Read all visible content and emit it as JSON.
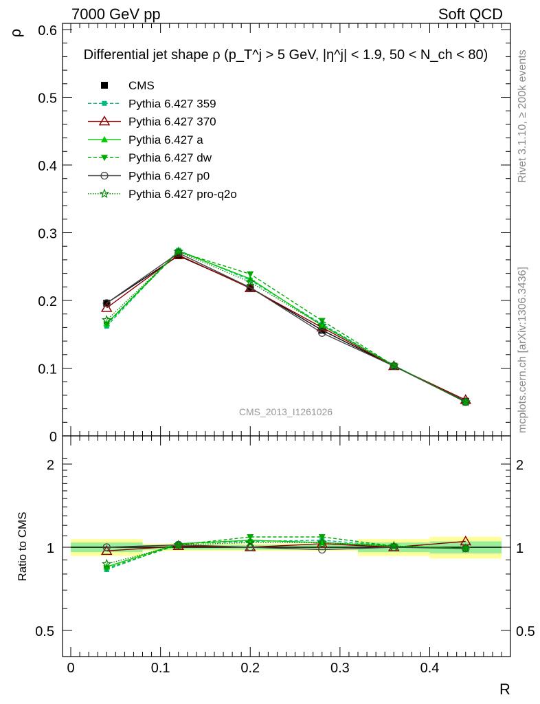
{
  "header": {
    "left": "7000 GeV pp",
    "right": "Soft QCD"
  },
  "side_labels": {
    "top": "Rivet 3.1.10, ≥ 200k events",
    "bottom": "mcplots.cern.ch [arXiv:1306.3436]"
  },
  "colors": {
    "cms": "#000000",
    "p359": "#00b980",
    "p370": "#8b0000",
    "pa": "#00cc00",
    "pdw": "#00aa00",
    "pp0": "#444444",
    "pq2o": "#008800",
    "band_outer": "#ffff99",
    "band_inner": "#99ee99"
  },
  "chart_data": [
    {
      "type": "line",
      "title": "Differential jet shape ρ (p_T^j > 5 GeV, |η^j| < 1.9, 50 < N_ch < 80)",
      "ylabel": "ρ",
      "xlim": [
        0,
        0.48
      ],
      "ylim": [
        0,
        0.6
      ],
      "watermark": "CMS_2013_I1261026",
      "x": [
        0.04,
        0.12,
        0.2,
        0.28,
        0.36,
        0.44
      ],
      "yticks": [
        "0",
        "0.1",
        "0.2",
        "0.3",
        "0.4",
        "0.5",
        "0.6"
      ],
      "legend_position": "top-left",
      "series": [
        {
          "name": "CMS",
          "marker": "square",
          "values": [
            0.196,
            0.266,
            0.219,
            0.156,
            0.103,
            0.051
          ]
        },
        {
          "name": "Pythia 6.427 359",
          "marker": "small-square",
          "dash": "dashed",
          "values": [
            0.162,
            0.274,
            0.23,
            0.165,
            0.104,
            0.05
          ]
        },
        {
          "name": "Pythia 6.427 370",
          "marker": "open-triangle",
          "dash": "solid",
          "values": [
            0.189,
            0.267,
            0.218,
            0.16,
            0.103,
            0.053
          ]
        },
        {
          "name": "Pythia 6.427 a",
          "marker": "triangle",
          "dash": "solid",
          "values": [
            0.166,
            0.273,
            0.232,
            0.163,
            0.104,
            0.05
          ]
        },
        {
          "name": "Pythia 6.427 dw",
          "marker": "triangle-down",
          "dash": "dashed",
          "values": [
            0.165,
            0.272,
            0.239,
            0.17,
            0.104,
            0.05
          ]
        },
        {
          "name": "Pythia 6.427 p0",
          "marker": "open-circle",
          "dash": "solid",
          "values": [
            0.196,
            0.27,
            0.219,
            0.152,
            0.103,
            0.05
          ]
        },
        {
          "name": "Pythia 6.427 pro-q2o",
          "marker": "star",
          "dash": "dotted",
          "values": [
            0.171,
            0.272,
            0.227,
            0.163,
            0.104,
            0.05
          ]
        }
      ]
    },
    {
      "type": "line",
      "ylabel": "Ratio to CMS",
      "xlabel": "R",
      "xlim": [
        0,
        0.48
      ],
      "ylim": [
        0.5,
        2.2
      ],
      "yscale": "log",
      "x": [
        0.04,
        0.12,
        0.2,
        0.28,
        0.36,
        0.44
      ],
      "xticks": [
        "0",
        "0.1",
        "0.2",
        "0.3",
        "0.4"
      ],
      "yticks": [
        "0.5",
        "1",
        "2"
      ],
      "bands": [
        {
          "x0": 0.0,
          "x1": 0.08,
          "outer": [
            0.93,
            1.07
          ],
          "inner": [
            0.96,
            1.04
          ]
        },
        {
          "x0": 0.08,
          "x1": 0.16,
          "outer": [
            0.97,
            1.03
          ],
          "inner": [
            0.98,
            1.02
          ]
        },
        {
          "x0": 0.16,
          "x1": 0.24,
          "outer": [
            0.97,
            1.03
          ],
          "inner": [
            0.98,
            1.02
          ]
        },
        {
          "x0": 0.24,
          "x1": 0.32,
          "outer": [
            0.97,
            1.03
          ],
          "inner": [
            0.98,
            1.02
          ]
        },
        {
          "x0": 0.32,
          "x1": 0.4,
          "outer": [
            0.93,
            1.07
          ],
          "inner": [
            0.96,
            1.04
          ]
        },
        {
          "x0": 0.4,
          "x1": 0.48,
          "outer": [
            0.91,
            1.09
          ],
          "inner": [
            0.95,
            1.05
          ]
        }
      ],
      "series": [
        {
          "name": "Pythia 6.427 359",
          "values": [
            0.83,
            1.03,
            1.05,
            1.06,
            1.01,
            0.99
          ]
        },
        {
          "name": "Pythia 6.427 370",
          "values": [
            0.97,
            1.01,
            1.0,
            1.03,
            1.0,
            1.05
          ]
        },
        {
          "name": "Pythia 6.427 a",
          "values": [
            0.85,
            1.03,
            1.06,
            1.04,
            1.01,
            0.99
          ]
        },
        {
          "name": "Pythia 6.427 dw",
          "values": [
            0.84,
            1.02,
            1.09,
            1.09,
            1.01,
            0.99
          ]
        },
        {
          "name": "Pythia 6.427 p0",
          "values": [
            1.0,
            1.02,
            1.0,
            0.98,
            1.0,
            0.99
          ]
        },
        {
          "name": "Pythia 6.427 pro-q2o",
          "values": [
            0.87,
            1.02,
            1.04,
            1.04,
            1.01,
            0.99
          ]
        }
      ]
    }
  ]
}
